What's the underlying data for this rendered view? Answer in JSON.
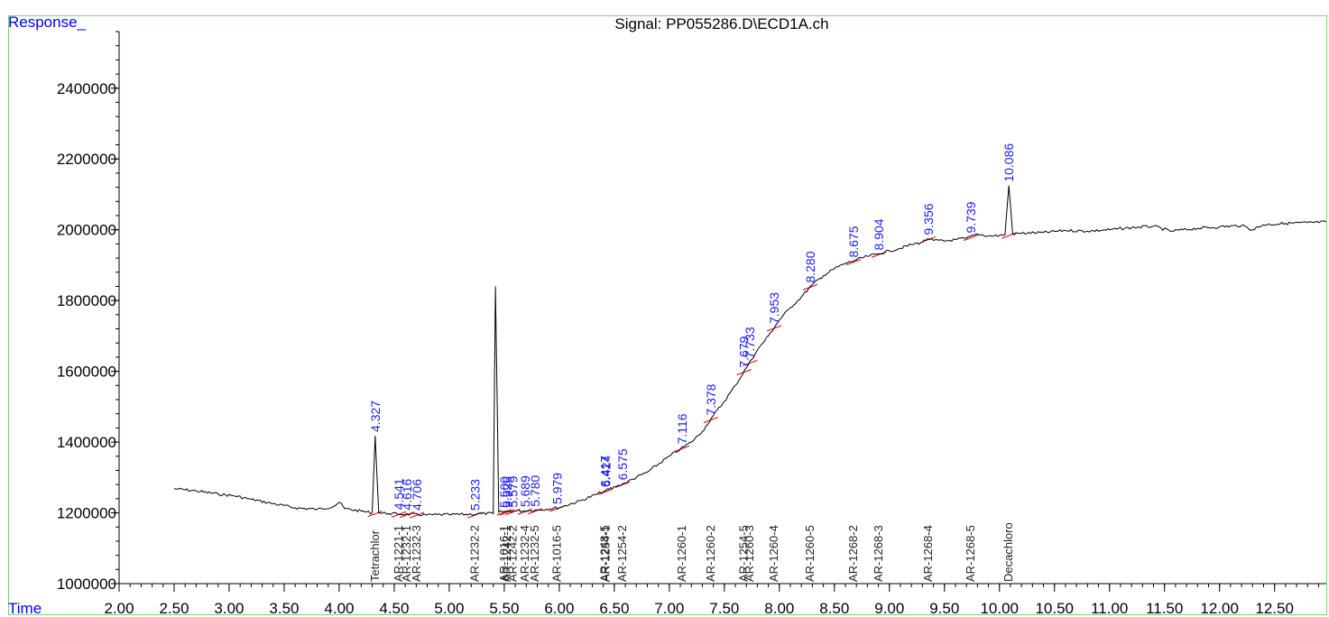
{
  "chart_data": {
    "type": "line",
    "title": "Signal: PP055286.D\\ECD1A.ch",
    "xlabel": "Time",
    "ylabel": "Response_",
    "xlim": [
      2.0,
      12.97
    ],
    "ylim": [
      1000000,
      2560000
    ],
    "x_ticks": [
      "2.00",
      "2.50",
      "3.00",
      "3.50",
      "4.00",
      "4.50",
      "5.00",
      "5.50",
      "6.00",
      "6.50",
      "7.00",
      "7.50",
      "8.00",
      "8.50",
      "9.00",
      "9.50",
      "10.00",
      "10.50",
      "11.00",
      "11.50",
      "12.00",
      "12.50"
    ],
    "y_ticks": [
      "1000000",
      "1200000",
      "1400000",
      "1600000",
      "1800000",
      "2000000",
      "2200000",
      "2400000"
    ],
    "series": [
      {
        "x": [
          2.5,
          2.7,
          2.9,
          3.05,
          3.2,
          3.4,
          3.6,
          3.8,
          3.95,
          4.0,
          4.05,
          4.2,
          4.3,
          4.327,
          4.36,
          4.45,
          4.6,
          4.8,
          5.0,
          5.2,
          5.3,
          5.4,
          5.42,
          5.45,
          5.5,
          5.6,
          5.8,
          6.0,
          6.2,
          6.4,
          6.6,
          6.8,
          7.0,
          7.1,
          7.2,
          7.3,
          7.4,
          7.5,
          7.6,
          7.7,
          7.8,
          7.9,
          8.0,
          8.1,
          8.2,
          8.3,
          8.4,
          8.5,
          8.6,
          8.7,
          8.8,
          8.9,
          9.0,
          9.1,
          9.2,
          9.3,
          9.35,
          9.4,
          9.5,
          9.6,
          9.7,
          9.8,
          9.9,
          10.0,
          10.05,
          10.086,
          10.12,
          10.2,
          10.4,
          10.6,
          10.8,
          11.0,
          11.2,
          11.4,
          11.55,
          11.8,
          12.0,
          12.2,
          12.3,
          12.4,
          12.6,
          12.8,
          12.97
        ],
        "y": [
          1268000,
          1262000,
          1253000,
          1248000,
          1238000,
          1226000,
          1214000,
          1210000,
          1218000,
          1230000,
          1212000,
          1205000,
          1200000,
          1418000,
          1200000,
          1198000,
          1196000,
          1194000,
          1195000,
          1196000,
          1198000,
          1198000,
          1840000,
          1202000,
          1204000,
          1205000,
          1208000,
          1215000,
          1235000,
          1260000,
          1285000,
          1315000,
          1360000,
          1380000,
          1400000,
          1430000,
          1475000,
          1515000,
          1560000,
          1610000,
          1660000,
          1700000,
          1745000,
          1780000,
          1810000,
          1845000,
          1870000,
          1890000,
          1905000,
          1915000,
          1925000,
          1932000,
          1940000,
          1948000,
          1958000,
          1965000,
          1975000,
          1970000,
          1968000,
          1972000,
          1976000,
          1988000,
          1982000,
          1984000,
          1986000,
          2125000,
          1988000,
          1990000,
          1992000,
          1998000,
          1996000,
          2000000,
          2006000,
          2010000,
          1996000,
          2004000,
          2008000,
          2012000,
          2000000,
          2014000,
          2018000,
          2020000,
          2022000
        ]
      }
    ],
    "peaks": [
      {
        "rt": "4.327",
        "x": 4.327,
        "y": 1418000
      },
      {
        "rt": "4.541",
        "x": 4.541,
        "y": 1198000
      },
      {
        "rt": "4.616",
        "x": 4.616,
        "y": 1197000
      },
      {
        "rt": "4.706",
        "x": 4.706,
        "y": 1196000
      },
      {
        "rt": "5.233",
        "x": 5.233,
        "y": 1196000
      },
      {
        "rt": "5.500",
        "x": 5.5,
        "y": 1204000
      },
      {
        "rt": "5.526",
        "x": 5.526,
        "y": 1204000
      },
      {
        "rt": "5.579",
        "x": 5.579,
        "y": 1205000
      },
      {
        "rt": "5.689",
        "x": 5.689,
        "y": 1206000
      },
      {
        "rt": "5.780",
        "x": 5.78,
        "y": 1207000
      },
      {
        "rt": "5.979",
        "x": 5.979,
        "y": 1214000
      },
      {
        "rt": "6.417",
        "x": 6.417,
        "y": 1262000
      },
      {
        "rt": "6.424",
        "x": 6.424,
        "y": 1263000
      },
      {
        "rt": "6.575",
        "x": 6.575,
        "y": 1282000
      },
      {
        "rt": "7.116",
        "x": 7.116,
        "y": 1384000
      },
      {
        "rt": "7.378",
        "x": 7.378,
        "y": 1465000
      },
      {
        "rt": "7.679",
        "x": 7.679,
        "y": 1600000
      },
      {
        "rt": "7.733",
        "x": 7.733,
        "y": 1626000
      },
      {
        "rt": "7.953",
        "x": 7.953,
        "y": 1724000
      },
      {
        "rt": "8.280",
        "x": 8.28,
        "y": 1840000
      },
      {
        "rt": "8.675",
        "x": 8.675,
        "y": 1911000
      },
      {
        "rt": "8.904",
        "x": 8.904,
        "y": 1932000
      },
      {
        "rt": "9.356",
        "x": 9.356,
        "y": 1975000
      },
      {
        "rt": "9.739",
        "x": 9.739,
        "y": 1980000
      },
      {
        "rt": "10.086",
        "x": 10.086,
        "y": 2125000
      }
    ],
    "compounds": [
      {
        "name": "Tetrachlor",
        "x": 4.327
      },
      {
        "name": "AR-1221-1",
        "x": 4.541
      },
      {
        "name": "AR-1232-1",
        "x": 4.616
      },
      {
        "name": "AR-1232-3",
        "x": 4.706
      },
      {
        "name": "AR-1232-2",
        "x": 5.233
      },
      {
        "name": "AR-1016-1",
        "x": 5.5
      },
      {
        "name": "AR-1242-1",
        "x": 5.526
      },
      {
        "name": "AR-1242-2",
        "x": 5.579
      },
      {
        "name": "AR-1232-4",
        "x": 5.689
      },
      {
        "name": "AR-1232-5",
        "x": 5.78
      },
      {
        "name": "AR-1016-5",
        "x": 5.979
      },
      {
        "name": "AR-1248-5",
        "x": 6.417
      },
      {
        "name": "AR-1254-1",
        "x": 6.424
      },
      {
        "name": "AR-1254-2",
        "x": 6.575
      },
      {
        "name": "AR-1260-1",
        "x": 7.116
      },
      {
        "name": "AR-1260-2",
        "x": 7.378
      },
      {
        "name": "AR-1254-5",
        "x": 7.679
      },
      {
        "name": "AR-1260-3",
        "x": 7.733
      },
      {
        "name": "AR-1260-4",
        "x": 7.953
      },
      {
        "name": "AR-1260-5",
        "x": 8.28
      },
      {
        "name": "AR-1268-2",
        "x": 8.675
      },
      {
        "name": "AR-1268-3",
        "x": 8.904
      },
      {
        "name": "AR-1268-4",
        "x": 9.356
      },
      {
        "name": "AR-1268-5",
        "x": 9.739
      },
      {
        "name": "Decachloro",
        "x": 10.086
      }
    ]
  }
}
